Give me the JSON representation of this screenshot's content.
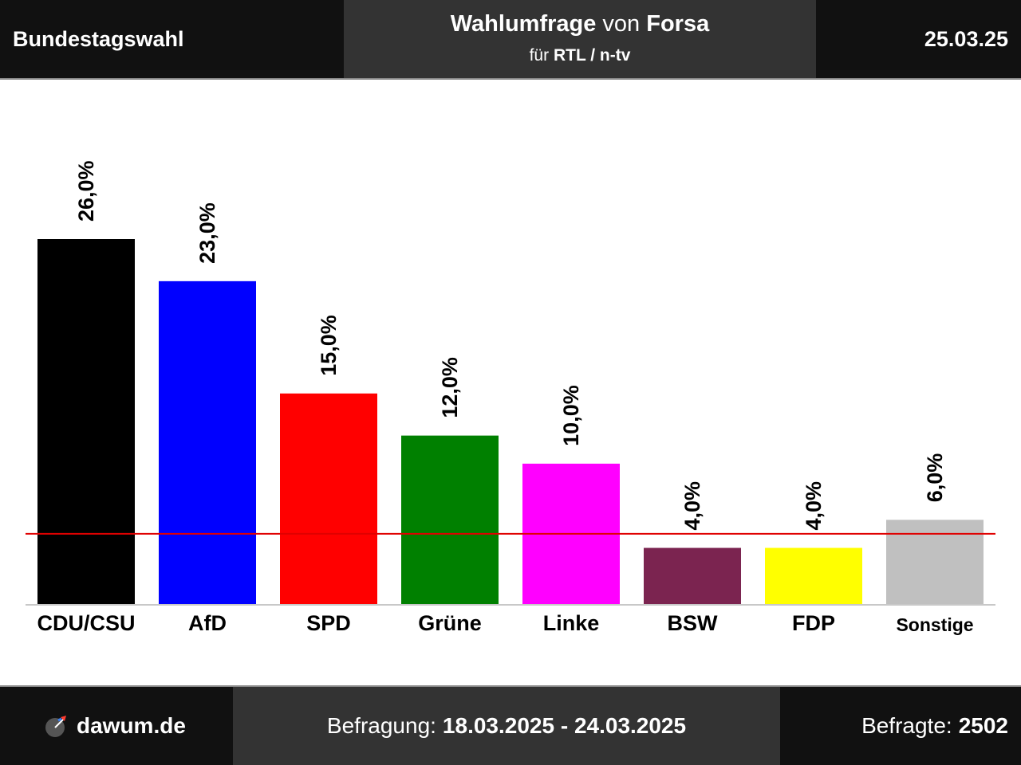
{
  "header": {
    "left": "Bundestagswahl",
    "title_bold": "Wahlumfrage",
    "title_von": "von",
    "institute": "Forsa",
    "sub_fuer": "für",
    "client": "RTL / n-tv",
    "date": "25.03.25"
  },
  "footer": {
    "brand": "dawum.de",
    "period_label": "Befragung:",
    "period": "18.03.2025 - 24.03.2025",
    "respondents_label": "Befragte:",
    "respondents": "2502"
  },
  "chart_data": {
    "type": "bar",
    "categories": [
      "CDU/CSU",
      "AfD",
      "SPD",
      "Grüne",
      "Linke",
      "BSW",
      "FDP",
      "Sonstige"
    ],
    "values": [
      26.0,
      23.0,
      15.0,
      12.0,
      10.0,
      4.0,
      4.0,
      6.0
    ],
    "value_labels": [
      "26,0%",
      "23,0%",
      "15,0%",
      "12,0%",
      "10,0%",
      "4,0%",
      "4,0%",
      "6,0%"
    ],
    "colors": [
      "#000000",
      "#0000ff",
      "#ff0000",
      "#008000",
      "#ff00ff",
      "#7b2450",
      "#ffff00",
      "#c0c0c0"
    ],
    "threshold": 5.0,
    "threshold_color": "#e00000",
    "ylim": [
      0,
      26.0
    ],
    "grid": false
  }
}
